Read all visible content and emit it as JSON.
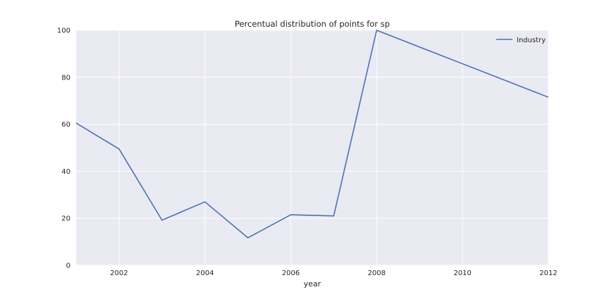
{
  "chart_data": {
    "type": "line",
    "title": "Percentual distribution of points for sp",
    "xlabel": "year",
    "ylabel": "",
    "xlim": [
      2001,
      2012
    ],
    "ylim": [
      0,
      100
    ],
    "xticks": [
      "2002",
      "2004",
      "2006",
      "2008",
      "2010",
      "2012"
    ],
    "yticks": [
      "0",
      "20",
      "40",
      "60",
      "80",
      "100"
    ],
    "grid": true,
    "legend": "top-right",
    "x": [
      2001,
      2002,
      2003,
      2004,
      2005,
      2006,
      2007,
      2008,
      2012
    ],
    "series": [
      {
        "name": "Industry",
        "color": "#4c72b0",
        "values": [
          60.5,
          49.5,
          19.2,
          27.0,
          11.7,
          21.5,
          21.0,
          100,
          71.5
        ]
      }
    ]
  }
}
